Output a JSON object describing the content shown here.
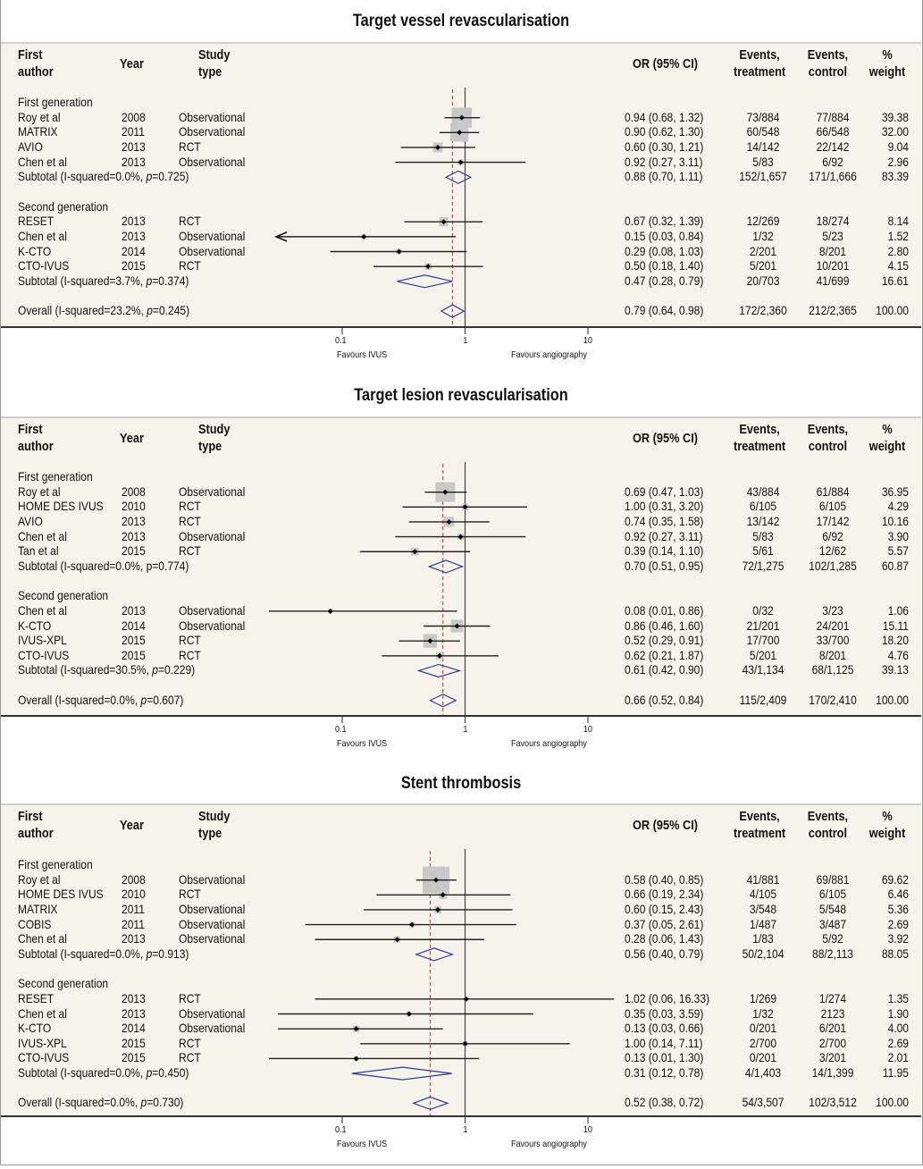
{
  "headers": {
    "author": [
      "First",
      "author"
    ],
    "year": "Year",
    "type": [
      "Study",
      "type"
    ],
    "or": "OR (95% CI)",
    "events_treatment": [
      "Events,",
      "treatment"
    ],
    "events_control": [
      "Events,",
      "control"
    ],
    "weight": [
      "%",
      "weight"
    ]
  },
  "axis": {
    "ticks": [
      "0.1",
      "1",
      "10"
    ],
    "left_label": "Favours IVUS",
    "right_label": "Favours angiography"
  },
  "chart_data": [
    {
      "type": "forest",
      "title": "Target vessel revascularisation",
      "xscale": "log",
      "xlim": [
        0.1,
        10
      ],
      "null_line": 1,
      "overall_line": 0.79,
      "groups": [
        {
          "name": "First generation",
          "studies": [
            {
              "author": "Roy et al",
              "year": "2008",
              "type": "Observational",
              "or": 0.94,
              "lo": 0.68,
              "hi": 1.32,
              "ci_text": "0.94 (0.68, 1.32)",
              "et": "73/884",
              "ec": "77/884",
              "weight": "39.38"
            },
            {
              "author": "MATRIX",
              "year": "2011",
              "type": "Observational",
              "or": 0.9,
              "lo": 0.62,
              "hi": 1.3,
              "ci_text": "0.90 (0.62, 1.30)",
              "et": "60/548",
              "ec": "66/548",
              "weight": "32.00"
            },
            {
              "author": "AVIO",
              "year": "2013",
              "type": "RCT",
              "or": 0.6,
              "lo": 0.3,
              "hi": 1.21,
              "ci_text": "0.60 (0.30, 1.21)",
              "et": "14/142",
              "ec": "22/142",
              "weight": "9.04"
            },
            {
              "author": "Chen et al",
              "year": "2013",
              "type": "Observational",
              "or": 0.92,
              "lo": 0.27,
              "hi": 3.11,
              "ci_text": "0.92 (0.27, 3.11)",
              "et": "5/83",
              "ec": "6/92",
              "weight": "2.96"
            }
          ],
          "subtotal": {
            "label_pre": "Subtotal (I-squared=0.0%, ",
            "p_sym": "p",
            "label_post": "=0.725)",
            "or": 0.88,
            "lo": 0.7,
            "hi": 1.11,
            "ci_text": "0.88 (0.70, 1.11)",
            "et": "152/1,657",
            "ec": "171/1,666",
            "weight": "83.39"
          }
        },
        {
          "name": "Second generation",
          "studies": [
            {
              "author": "RESET",
              "year": "2013",
              "type": "RCT",
              "or": 0.67,
              "lo": 0.32,
              "hi": 1.39,
              "ci_text": "0.67 (0.32, 1.39)",
              "et": "12/269",
              "ec": "18/274",
              "weight": "8.14"
            },
            {
              "author": "Chen et al",
              "year": "2013",
              "type": "Observational",
              "or": 0.15,
              "lo": 0.03,
              "hi": 0.84,
              "ci_text": "0.15 (0.03, 0.84)",
              "et": "1/32",
              "ec": "5/23",
              "weight": "1.52",
              "arrow_left": true
            },
            {
              "author": "K-CTO",
              "year": "2014",
              "type": "Observational",
              "or": 0.29,
              "lo": 0.08,
              "hi": 1.03,
              "ci_text": "0.29 (0.08, 1.03)",
              "et": "2/201",
              "ec": "8/201",
              "weight": "2.80"
            },
            {
              "author": "CTO-IVUS",
              "year": "2015",
              "type": "RCT",
              "or": 0.5,
              "lo": 0.18,
              "hi": 1.4,
              "ci_text": "0.50 (0.18, 1.40)",
              "et": "5/201",
              "ec": "10/201",
              "weight": "4.15"
            }
          ],
          "subtotal": {
            "label_pre": "Subtotal (I-squared=3.7%, ",
            "p_sym": "p",
            "label_post": "=0.374)",
            "or": 0.47,
            "lo": 0.28,
            "hi": 0.79,
            "ci_text": "0.47 (0.28, 0.79)",
            "et": "20/703",
            "ec": "41/699",
            "weight": "16.61"
          }
        }
      ],
      "overall": {
        "label_pre": "Overall (I-squared=23.2%, ",
        "p_sym": "p",
        "label_post": "=0.245)",
        "or": 0.79,
        "lo": 0.64,
        "hi": 0.98,
        "ci_text": "0.79 (0.64, 0.98)",
        "et": "172/2,360",
        "ec": "212/2,365",
        "weight": "100.00"
      }
    },
    {
      "type": "forest",
      "title": "Target lesion revascularisation",
      "xscale": "log",
      "xlim": [
        0.1,
        10
      ],
      "null_line": 1,
      "overall_line": 0.66,
      "groups": [
        {
          "name": "First generation",
          "studies": [
            {
              "author": "Roy et al",
              "year": "2008",
              "type": "Observational",
              "or": 0.69,
              "lo": 0.47,
              "hi": 1.03,
              "ci_text": "0.69 (0.47, 1.03)",
              "et": "43/884",
              "ec": "61/884",
              "weight": "36.95"
            },
            {
              "author": "HOME DES IVUS",
              "year": "2010",
              "type": "RCT",
              "or": 1.0,
              "lo": 0.31,
              "hi": 3.2,
              "ci_text": "1.00 (0.31, 3.20)",
              "et": "6/105",
              "ec": "6/105",
              "weight": "4.29"
            },
            {
              "author": "AVIO",
              "year": "2013",
              "type": "RCT",
              "or": 0.74,
              "lo": 0.35,
              "hi": 1.58,
              "ci_text": "0.74 (0.35, 1.58)",
              "et": "13/142",
              "ec": "17/142",
              "weight": "10.16"
            },
            {
              "author": "Chen et al",
              "year": "2013",
              "type": "Observational",
              "or": 0.92,
              "lo": 0.27,
              "hi": 3.11,
              "ci_text": "0.92 (0.27, 3.11)",
              "et": "5/83",
              "ec": "6/92",
              "weight": "3.90"
            },
            {
              "author": "Tan et al",
              "year": "2015",
              "type": "RCT",
              "or": 0.39,
              "lo": 0.14,
              "hi": 1.1,
              "ci_text": "0.39 (0.14, 1.10)",
              "et": "5/61",
              "ec": "12/62",
              "weight": "5.57"
            }
          ],
          "subtotal": {
            "label_pre": "Subtotal (I-squared=0.0%, ",
            "p_sym": "p",
            "p_plain": true,
            "label_post": "=0.774)",
            "or": 0.7,
            "lo": 0.51,
            "hi": 0.95,
            "ci_text": "0.70 (0.51, 0.95)",
            "et": "72/1,275",
            "ec": "102/1,285",
            "weight": "60.87"
          }
        },
        {
          "name": "Second generation",
          "studies": [
            {
              "author": "Chen et al",
              "year": "2013",
              "type": "Observational",
              "or": 0.08,
              "lo": 0.01,
              "hi": 0.86,
              "ci_text": "0.08 (0.01, 0.86)",
              "et": "0/32",
              "ec": "3/23",
              "weight": "1.06"
            },
            {
              "author": "K-CTO",
              "year": "2014",
              "type": "Observational",
              "or": 0.86,
              "lo": 0.46,
              "hi": 1.6,
              "ci_text": "0.86 (0.46, 1.60)",
              "et": "21/201",
              "ec": "24/201",
              "weight": "15.11"
            },
            {
              "author": "IVUS-XPL",
              "year": "2015",
              "type": "RCT",
              "or": 0.52,
              "lo": 0.29,
              "hi": 0.91,
              "ci_text": "0.52 (0.29, 0.91)",
              "et": "17/700",
              "ec": "33/700",
              "weight": "18.20"
            },
            {
              "author": "CTO-IVUS",
              "year": "2015",
              "type": "RCT",
              "or": 0.62,
              "lo": 0.21,
              "hi": 1.87,
              "ci_text": "0.62 (0.21, 1.87)",
              "et": "5/201",
              "ec": "8/201",
              "weight": "4.76"
            }
          ],
          "subtotal": {
            "label_pre": "Subtotal (I-squared=30.5%, ",
            "p_sym": "p",
            "label_post": "=0.229)",
            "or": 0.61,
            "lo": 0.42,
            "hi": 0.9,
            "ci_text": "0.61 (0.42, 0.90)",
            "et": "43/1,134",
            "ec": "68/1,125",
            "weight": "39.13"
          }
        }
      ],
      "overall": {
        "label_pre": "Overall (I-squared=0.0%, ",
        "p_sym": "p",
        "label_post": "=0.607)",
        "or": 0.66,
        "lo": 0.52,
        "hi": 0.84,
        "ci_text": "0.66 (0.52, 0.84)",
        "et": "115/2,409",
        "ec": "170/2,410",
        "weight": "100.00"
      }
    },
    {
      "type": "forest",
      "title": "Stent thrombosis",
      "xscale": "log",
      "xlim": [
        0.1,
        10
      ],
      "null_line": 1,
      "overall_line": 0.52,
      "groups": [
        {
          "name": "First generation",
          "studies": [
            {
              "author": "Roy et al",
              "year": "2008",
              "type": "Observational",
              "or": 0.58,
              "lo": 0.4,
              "hi": 0.85,
              "ci_text": "0.58 (0.40, 0.85)",
              "et": "41/881",
              "ec": "69/881",
              "weight": "69.62"
            },
            {
              "author": "HOME DES IVUS",
              "year": "2010",
              "type": "RCT",
              "or": 0.66,
              "lo": 0.19,
              "hi": 2.34,
              "ci_text": "0.66 (0.19, 2.34)",
              "et": "4/105",
              "ec": "6/105",
              "weight": "6.46"
            },
            {
              "author": "MATRIX",
              "year": "2011",
              "type": "Observational",
              "or": 0.6,
              "lo": 0.15,
              "hi": 2.43,
              "ci_text": "0.60 (0.15, 2.43)",
              "et": "3/548",
              "ec": "5/548",
              "weight": "5.36"
            },
            {
              "author": "COBIS",
              "year": "2011",
              "type": "Observational",
              "or": 0.37,
              "lo": 0.05,
              "hi": 2.61,
              "ci_text": "0.37 (0.05, 2.61)",
              "et": "1/487",
              "ec": "3/487",
              "weight": "2.69"
            },
            {
              "author": "Chen et al",
              "year": "2013",
              "type": "Observational",
              "or": 0.28,
              "lo": 0.06,
              "hi": 1.43,
              "ci_text": "0.28 (0.06, 1.43)",
              "et": "1/83",
              "ec": "5/92",
              "weight": "3.92"
            }
          ],
          "subtotal": {
            "label_pre": "Subtotal (I-squared=0.0%, ",
            "p_sym": "p",
            "label_post": "=0.913)",
            "or": 0.56,
            "lo": 0.4,
            "hi": 0.79,
            "ci_text": "0.56 (0.40, 0.79)",
            "et": "50/2,104",
            "ec": "88/2,113",
            "weight": "88.05"
          }
        },
        {
          "name": "Second generation",
          "studies": [
            {
              "author": "RESET",
              "year": "2013",
              "type": "RCT",
              "or": 1.02,
              "lo": 0.06,
              "hi": 16.33,
              "ci_text": "1.02 (0.06, 16.33)",
              "et": "1/269",
              "ec": "1/274",
              "weight": "1.35"
            },
            {
              "author": "Chen et al",
              "year": "2013",
              "type": "Observational",
              "or": 0.35,
              "lo": 0.03,
              "hi": 3.59,
              "ci_text": "0.35 (0.03, 3.59)",
              "et": "1/32",
              "ec": "2123",
              "weight": "1.90"
            },
            {
              "author": "K-CTO",
              "year": "2014",
              "type": "Observational",
              "or": 0.13,
              "lo": 0.03,
              "hi": 0.66,
              "ci_text": "0.13 (0.03, 0.66)",
              "et": "0/201",
              "ec": "6/201",
              "weight": "4.00"
            },
            {
              "author": "IVUS-XPL",
              "year": "2015",
              "type": "RCT",
              "or": 1.0,
              "lo": 0.14,
              "hi": 7.11,
              "ci_text": "1.00 (0.14, 7.11)",
              "et": "2/700",
              "ec": "2/700",
              "weight": "2.69"
            },
            {
              "author": "CTO-IVUS",
              "year": "2015",
              "type": "RCT",
              "or": 0.13,
              "lo": 0.01,
              "hi": 1.3,
              "ci_text": "0.13 (0.01, 1.30)",
              "et": "0/201",
              "ec": "3/201",
              "weight": "2.01"
            }
          ],
          "subtotal": {
            "label_pre": "Subtotal (I-squared=0.0%, ",
            "p_sym": "p",
            "label_post": "=0.450)",
            "or": 0.31,
            "lo": 0.12,
            "hi": 0.78,
            "ci_text": "0.31 (0.12, 0.78)",
            "et": "4/1,403",
            "ec": "14/1,399",
            "weight": "11.95"
          }
        }
      ],
      "overall": {
        "label_pre": "Overall (I-squared=0.0%, ",
        "p_sym": "p",
        "label_post": "=0.730)",
        "or": 0.52,
        "lo": 0.38,
        "hi": 0.72,
        "ci_text": "0.52 (0.38, 0.72)",
        "et": "54/3,507",
        "ec": "102/3,512",
        "weight": "100.00"
      }
    }
  ],
  "colors": {
    "background": "#f6f4ea",
    "diamond": "#2b3aa0",
    "reference_line": "#c0504d",
    "weight_box": "#c8c8c8"
  }
}
